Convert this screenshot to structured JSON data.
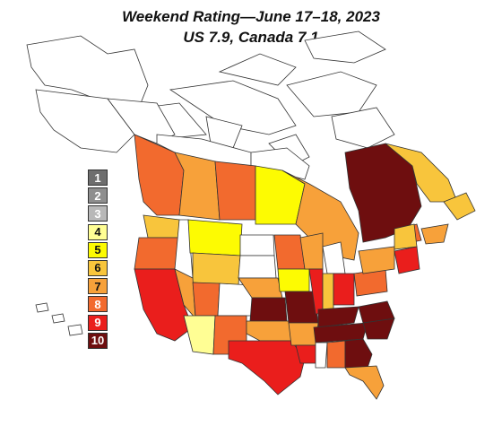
{
  "title_line1": "Weekend Rating—June 17–18, 2023",
  "title_line2": "US 7.9, Canada 7.1",
  "colors": {
    "1": "#6e6e6e",
    "2": "#8e8e8e",
    "3": "#b8b8b8",
    "4": "#fffe94",
    "5": "#fdfb02",
    "6": "#f8c53c",
    "7": "#f7a13a",
    "8": "#f26a2e",
    "9": "#ea1e1c",
    "10": "#6e0e0f"
  },
  "legend": [
    {
      "rating": "1",
      "color": "#6e6e6e"
    },
    {
      "rating": "2",
      "color": "#8e8e8e"
    },
    {
      "rating": "3",
      "color": "#b8b8b8"
    },
    {
      "rating": "4",
      "color": "#fffe94"
    },
    {
      "rating": "5",
      "color": "#fdfb02"
    },
    {
      "rating": "6",
      "color": "#f8c53c"
    },
    {
      "rating": "7",
      "color": "#f7a13a"
    },
    {
      "rating": "8",
      "color": "#f26a2e"
    },
    {
      "rating": "9",
      "color": "#ea1e1c"
    },
    {
      "rating": "10",
      "color": "#6e0e0f"
    }
  ]
}
